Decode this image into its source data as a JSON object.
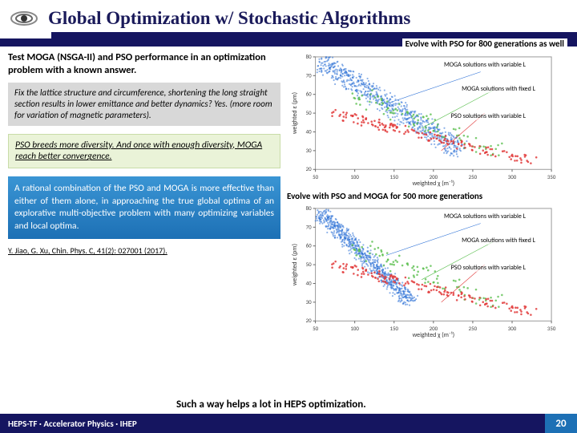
{
  "header": {
    "title": "Global Optimization w/ Stochastic Algorithms"
  },
  "topcaption": "Evolve with PSO for 800 generations as well",
  "left": {
    "intro": "Test MOGA (NSGA-II) and PSO performance in an optimization problem with a known answer.",
    "fixbox": "Fix the lattice structure and circumference, shortening the long straight section results in lower emittance and better dynamics?\nYes. (more room for variation of magnetic parameters).",
    "psobox": "PSO breeds more diversity. And once with enough diversity, MOGA reach better convergence.",
    "ratbox": "A rational combination of the PSO and MOGA is more effective than either of them alone, in approaching the true global optima of an explorative multi-objective problem with many optimizing variables and local optima.",
    "cite": "Y. Jiao, G. Xu, Chin. Phys. C, 41(2): 027001 (2017)."
  },
  "right": {
    "chart2caption": "Evolve with PSO and MOGA for 500 more generations",
    "labels": {
      "a": "MOGA solutions\nwith variable L",
      "b": "MOGA solutions\nwith fixed L",
      "c": "PSO solutions\nwith variable L"
    },
    "chart": {
      "xlabel": "weighted χ (m⁻¹)",
      "ylabel": "weighted ε (pm)",
      "xlim": [
        50,
        350
      ],
      "ylim": [
        20,
        80
      ],
      "xticks": [
        50,
        100,
        150,
        200,
        250,
        300,
        350
      ],
      "yticks": [
        20,
        30,
        40,
        50,
        60,
        70,
        80
      ],
      "background_color": "#ffffff",
      "grid_color": "#e0e0e0",
      "series": [
        {
          "name": "moga-var",
          "color": "#2a6fd6",
          "marker": "dot",
          "size": 1.1
        },
        {
          "name": "moga-fixed",
          "color": "#5bbf4f",
          "marker": "dot",
          "size": 1.3
        },
        {
          "name": "pso-var",
          "color": "#e23b3b",
          "marker": "dot",
          "size": 1.3
        }
      ]
    }
  },
  "closing": "Such a way helps a lot in HEPS optimization.",
  "footer": {
    "left": "HEPS-TF · Accelerator Physics · IHEP",
    "page": "20"
  }
}
